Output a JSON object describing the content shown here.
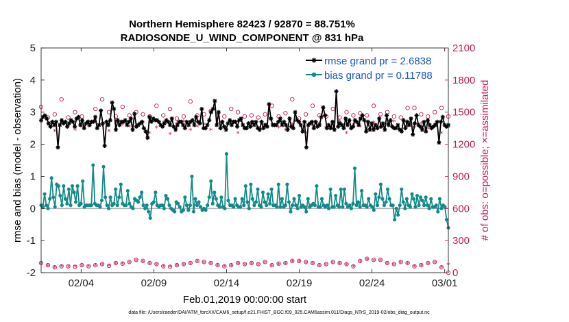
{
  "chart_data": {
    "type": "line",
    "title_line1": "Northern Hemisphere 82423 / 92870 = 88.751%",
    "title_line2": "RADIOSONDE_U_WIND_COMPONENT @ 831 hPa",
    "xlabel": "Feb.01,2019 00:00:00 start",
    "ylabel": "rmse and bias (model - observation)",
    "ylabel_right": "# of obs: o=possible; ×=assimilated",
    "x_range_days": [
      1,
      29
    ],
    "ylim": [
      -2,
      5
    ],
    "ylim_right": [
      0,
      2100
    ],
    "yticks": [
      "-2",
      "-1",
      "0",
      "1",
      "2",
      "3",
      "4",
      "5"
    ],
    "yticks_right": [
      "0",
      "300",
      "600",
      "900",
      "1200",
      "1500",
      "1800",
      "2100"
    ],
    "xticks": [
      {
        "day": 3.75,
        "label": "02/04"
      },
      {
        "day": 8.75,
        "label": "02/09"
      },
      {
        "day": 13.75,
        "label": "02/14"
      },
      {
        "day": 18.75,
        "label": "02/19"
      },
      {
        "day": 23.75,
        "label": "02/24"
      },
      {
        "day": 28.75,
        "label": "03/01"
      }
    ],
    "colors": {
      "rmse": "#000000",
      "bias": "#138a8a",
      "obs": "#c2185b",
      "zero_line": "#b3b3b3",
      "legend_text": "#1a56c8"
    },
    "series": [
      {
        "name": "rmse grand pr = 2.6838",
        "values": [
          2.75,
          2.85,
          2.9,
          2.8,
          2.65,
          2.55,
          2.7,
          2.6,
          2.7,
          1.9,
          2.6,
          2.75,
          2.65,
          2.7,
          2.55,
          2.65,
          2.75,
          2.7,
          2.55,
          2.8,
          2.85,
          2.6,
          2.75,
          2.5,
          2.65,
          2.7,
          2.6,
          2.7,
          2.7,
          2.85,
          2.5,
          2.6,
          3.05,
          2.65,
          1.95,
          2.7,
          2.6,
          2.75,
          3.3,
          3.1,
          2.45,
          2.75,
          2.6,
          2.7,
          2.7,
          2.75,
          2.6,
          2.7,
          2.8,
          2.45,
          2.95,
          2.55,
          2.6,
          2.65,
          2.7,
          2.5,
          2.4,
          2.2,
          2.85,
          2.7,
          2.8,
          2.75,
          2.75,
          2.7,
          2.6,
          2.55,
          2.65,
          2.75,
          2.7,
          2.6,
          2.8,
          2.55,
          2.45,
          2.6,
          2.7,
          2.7,
          2.6,
          2.5,
          2.7,
          2.6,
          2.7,
          2.75,
          2.6,
          2.85,
          2.7,
          2.65,
          3.1,
          2.5,
          2.5,
          2.6,
          2.75,
          3.0,
          3.1,
          3.35,
          2.6,
          3.0,
          2.5,
          2.7,
          2.55,
          2.45,
          2.65,
          2.75,
          2.6,
          2.7,
          2.7,
          2.55,
          2.75,
          2.8,
          2.6,
          2.5,
          2.5,
          2.65,
          2.55,
          2.7,
          2.6,
          2.7,
          2.5,
          2.45,
          2.7,
          2.5,
          2.6,
          2.55,
          3.25,
          2.8,
          2.6,
          2.6,
          2.6,
          2.7,
          2.8,
          2.6,
          2.7,
          2.6,
          2.45,
          2.8,
          2.55,
          2.5,
          3.0,
          2.75,
          2.7,
          2.6,
          2.4,
          2.7,
          1.9,
          2.6,
          2.65,
          2.7,
          2.5,
          2.7,
          2.55,
          2.6,
          2.85,
          3.15,
          2.9,
          2.5,
          2.6,
          2.5,
          2.7,
          2.45,
          3.65,
          2.55,
          2.65,
          2.6,
          2.5,
          2.8,
          2.6,
          2.75,
          2.5,
          2.55,
          2.75,
          2.7,
          2.6,
          2.8,
          2.9,
          2.75,
          2.4,
          2.7,
          2.45,
          2.65,
          2.45,
          2.6,
          2.5,
          2.8,
          2.55,
          2.65,
          2.45,
          2.9,
          2.6,
          2.75,
          2.55,
          2.5,
          2.5,
          2.6,
          2.45,
          2.4,
          2.75,
          2.5,
          2.7,
          2.6,
          2.8,
          2.3,
          2.65,
          2.9,
          2.6,
          2.55,
          2.45,
          2.7,
          2.4,
          2.75,
          2.6,
          2.5,
          2.55,
          2.6,
          2.7,
          2.05,
          2.7,
          2.85,
          2.6,
          2.55,
          2.6
        ]
      },
      {
        "name": "bias grand pr = 0.11788",
        "values": [
          0.1,
          0.05,
          0.45,
          0.1,
          0.0,
          0.3,
          0.95,
          0.35,
          0.05,
          0.75,
          0.7,
          0.4,
          0.1,
          0.7,
          0.3,
          0.15,
          0.6,
          0.1,
          0.7,
          0.5,
          0.2,
          0.7,
          0.1,
          0.15,
          0.85,
          0.05,
          0.1,
          0.1,
          0.1,
          0.1,
          1.35,
          0.15,
          0.1,
          0.1,
          0.05,
          0.25,
          1.3,
          0.35,
          0.1,
          0.0,
          0.35,
          0.1,
          0.15,
          0.6,
          0.1,
          0.35,
          0.75,
          0.15,
          0.1,
          0.1,
          0.55,
          0.15,
          0.05,
          0.0,
          0.3,
          0.25,
          0.2,
          0.35,
          0.5,
          0.1,
          0.0,
          0.1,
          -0.1,
          -0.3,
          0.15,
          0.2,
          0.5,
          0.1,
          0.05,
          0.1,
          0.1,
          0.0,
          0.4,
          0.3,
          0.1,
          0.0,
          -0.05,
          -0.1,
          0.2,
          0.15,
          0.05,
          -0.1,
          -0.05,
          0.35,
          0.1,
          -0.05,
          0.1,
          1.0,
          -0.1,
          0.3,
          0.1,
          0.2,
          0.05,
          -0.05,
          0.0,
          -0.05,
          0.1,
          0.35,
          0.85,
          0.15,
          0.5,
          0.3,
          0.1,
          0.05,
          0.35,
          0.05,
          0.0,
          1.7,
          0.25,
          0.1,
          0.1,
          0.05,
          0.3,
          0.1,
          0.05,
          0.05,
          0.3,
          0.1,
          0.7,
          0.2,
          0.0,
          0.75,
          0.3,
          0.1,
          0.2,
          0.6,
          0.1,
          0.05,
          0.5,
          0.2,
          0.1,
          0.45,
          0.15,
          0.6,
          0.1,
          0.1,
          0.05,
          0.75,
          0.05,
          0.3,
          0.05,
          0.1,
          0.75,
          0.2,
          -0.1,
          0.1,
          0.3,
          0.1,
          0.0,
          0.4,
          0.05,
          0.1,
          0.05,
          -0.1,
          0.3,
          0.05,
          0.1,
          0.15,
          0.1,
          0.7,
          0.05,
          0.05,
          0.3,
          0.1,
          0.05,
          0.1,
          0.0,
          0.6,
          0.05,
          0.05,
          0.4,
          0.1,
          0.05,
          0.6,
          0.05,
          0.6,
          0.15,
          0.05,
          0.1,
          0.0,
          0.15,
          1.25,
          0.1,
          0.2,
          0.05,
          0.55,
          0.1,
          0.1,
          0.05,
          0.3,
          0.1,
          0.05,
          -0.05,
          0.45,
          0.1,
          0.35,
          0.75,
          0.3,
          0.1,
          0.2,
          0.6,
          0.3,
          0.1,
          0.1,
          -0.35,
          0.0,
          -0.2,
          0.1,
          0.6,
          0.2,
          0.0,
          0.3,
          0.1,
          0.05,
          0.45,
          0.3,
          0.05,
          0.4,
          0.1,
          0.35,
          0.25,
          0.1,
          0.35,
          0.1,
          0.0,
          0.3,
          0.05,
          0.05,
          0.1,
          -0.1,
          0.3,
          0.0,
          0.1,
          0.05,
          -0.35,
          -0.6
        ]
      },
      {
        "name": "# of obs possible (o)",
        "axis": "right",
        "values": [
          1550,
          1450,
          1480,
          1620,
          1450,
          1500,
          1460,
          1410,
          1530,
          1620,
          1500,
          1460,
          1550,
          1470,
          1500,
          1480,
          1460,
          1560,
          1470,
          1530,
          1440,
          1460,
          1600,
          1470,
          1480,
          1510,
          1460,
          1460,
          1530,
          1500,
          1460,
          1470,
          1450,
          1480,
          1560,
          1460,
          1490,
          1620,
          1440,
          1480,
          1560,
          1470,
          1460,
          1530,
          1450,
          1500,
          1470,
          1490,
          1470,
          1560,
          1480,
          1500,
          1460,
          1450,
          1540,
          1540,
          1480,
          1460,
          1500,
          1540,
          1460
        ]
      },
      {
        "name": "# of obs assimilated (×)",
        "axis": "right",
        "values": [
          1400,
          1380,
          1320,
          1400,
          1370,
          1330,
          1360,
          1360,
          1410,
          1370,
          1320,
          1400,
          1380,
          1360,
          1350,
          1400,
          1300,
          1350,
          1400,
          1290,
          1390,
          1410,
          1330,
          1360,
          1380,
          1330,
          1390,
          1350,
          1410,
          1300,
          1350,
          1390,
          1350,
          1380,
          1420,
          1350,
          1330,
          1380,
          1390,
          1300,
          1370,
          1390,
          1350,
          1340,
          1410,
          1300,
          1380,
          1360,
          1330,
          1400,
          1350,
          1380,
          1410,
          1330,
          1360,
          1350,
          1390,
          1340,
          1380,
          1300,
          1350
        ]
      },
      {
        "name": "# of obs low band possible (o)",
        "axis": "right",
        "values": [
          90,
          70,
          50,
          60,
          60,
          55,
          70,
          60,
          70,
          80,
          65,
          90,
          85,
          100,
          120,
          110,
          90,
          80,
          60,
          55,
          70,
          80,
          90,
          110,
          100,
          90,
          70,
          60,
          70,
          90,
          80,
          90,
          80,
          100,
          70,
          85,
          90,
          110,
          110,
          100,
          90,
          70,
          80,
          100,
          90,
          80,
          60,
          110,
          130,
          120,
          120,
          90,
          80,
          100,
          90,
          60,
          70,
          90,
          100,
          50,
          0
        ]
      },
      {
        "name": "# of obs low band assimilated (×)",
        "axis": "right",
        "values": [
          80,
          60,
          45,
          55,
          50,
          50,
          60,
          55,
          65,
          70,
          60,
          80,
          80,
          90,
          110,
          100,
          80,
          70,
          55,
          50,
          60,
          70,
          80,
          100,
          90,
          80,
          60,
          55,
          60,
          80,
          70,
          80,
          70,
          90,
          60,
          75,
          80,
          100,
          100,
          90,
          80,
          60,
          70,
          90,
          80,
          70,
          55,
          100,
          120,
          110,
          110,
          80,
          70,
          90,
          80,
          55,
          60,
          80,
          90,
          45,
          70
        ]
      }
    ],
    "legend": [
      "rmse grand pr = 2.6838",
      "bias grand pr = 0.11788"
    ],
    "legend_placement": "top-right",
    "footnote": "data file: /Users/raeder/DAI/ATM_forcXX/CAM6_setup/f.e21.FHIST_BGC.f09_025.CAM6assim.011/Diags_NTrS_2019-02/obs_diag_output.nc"
  }
}
